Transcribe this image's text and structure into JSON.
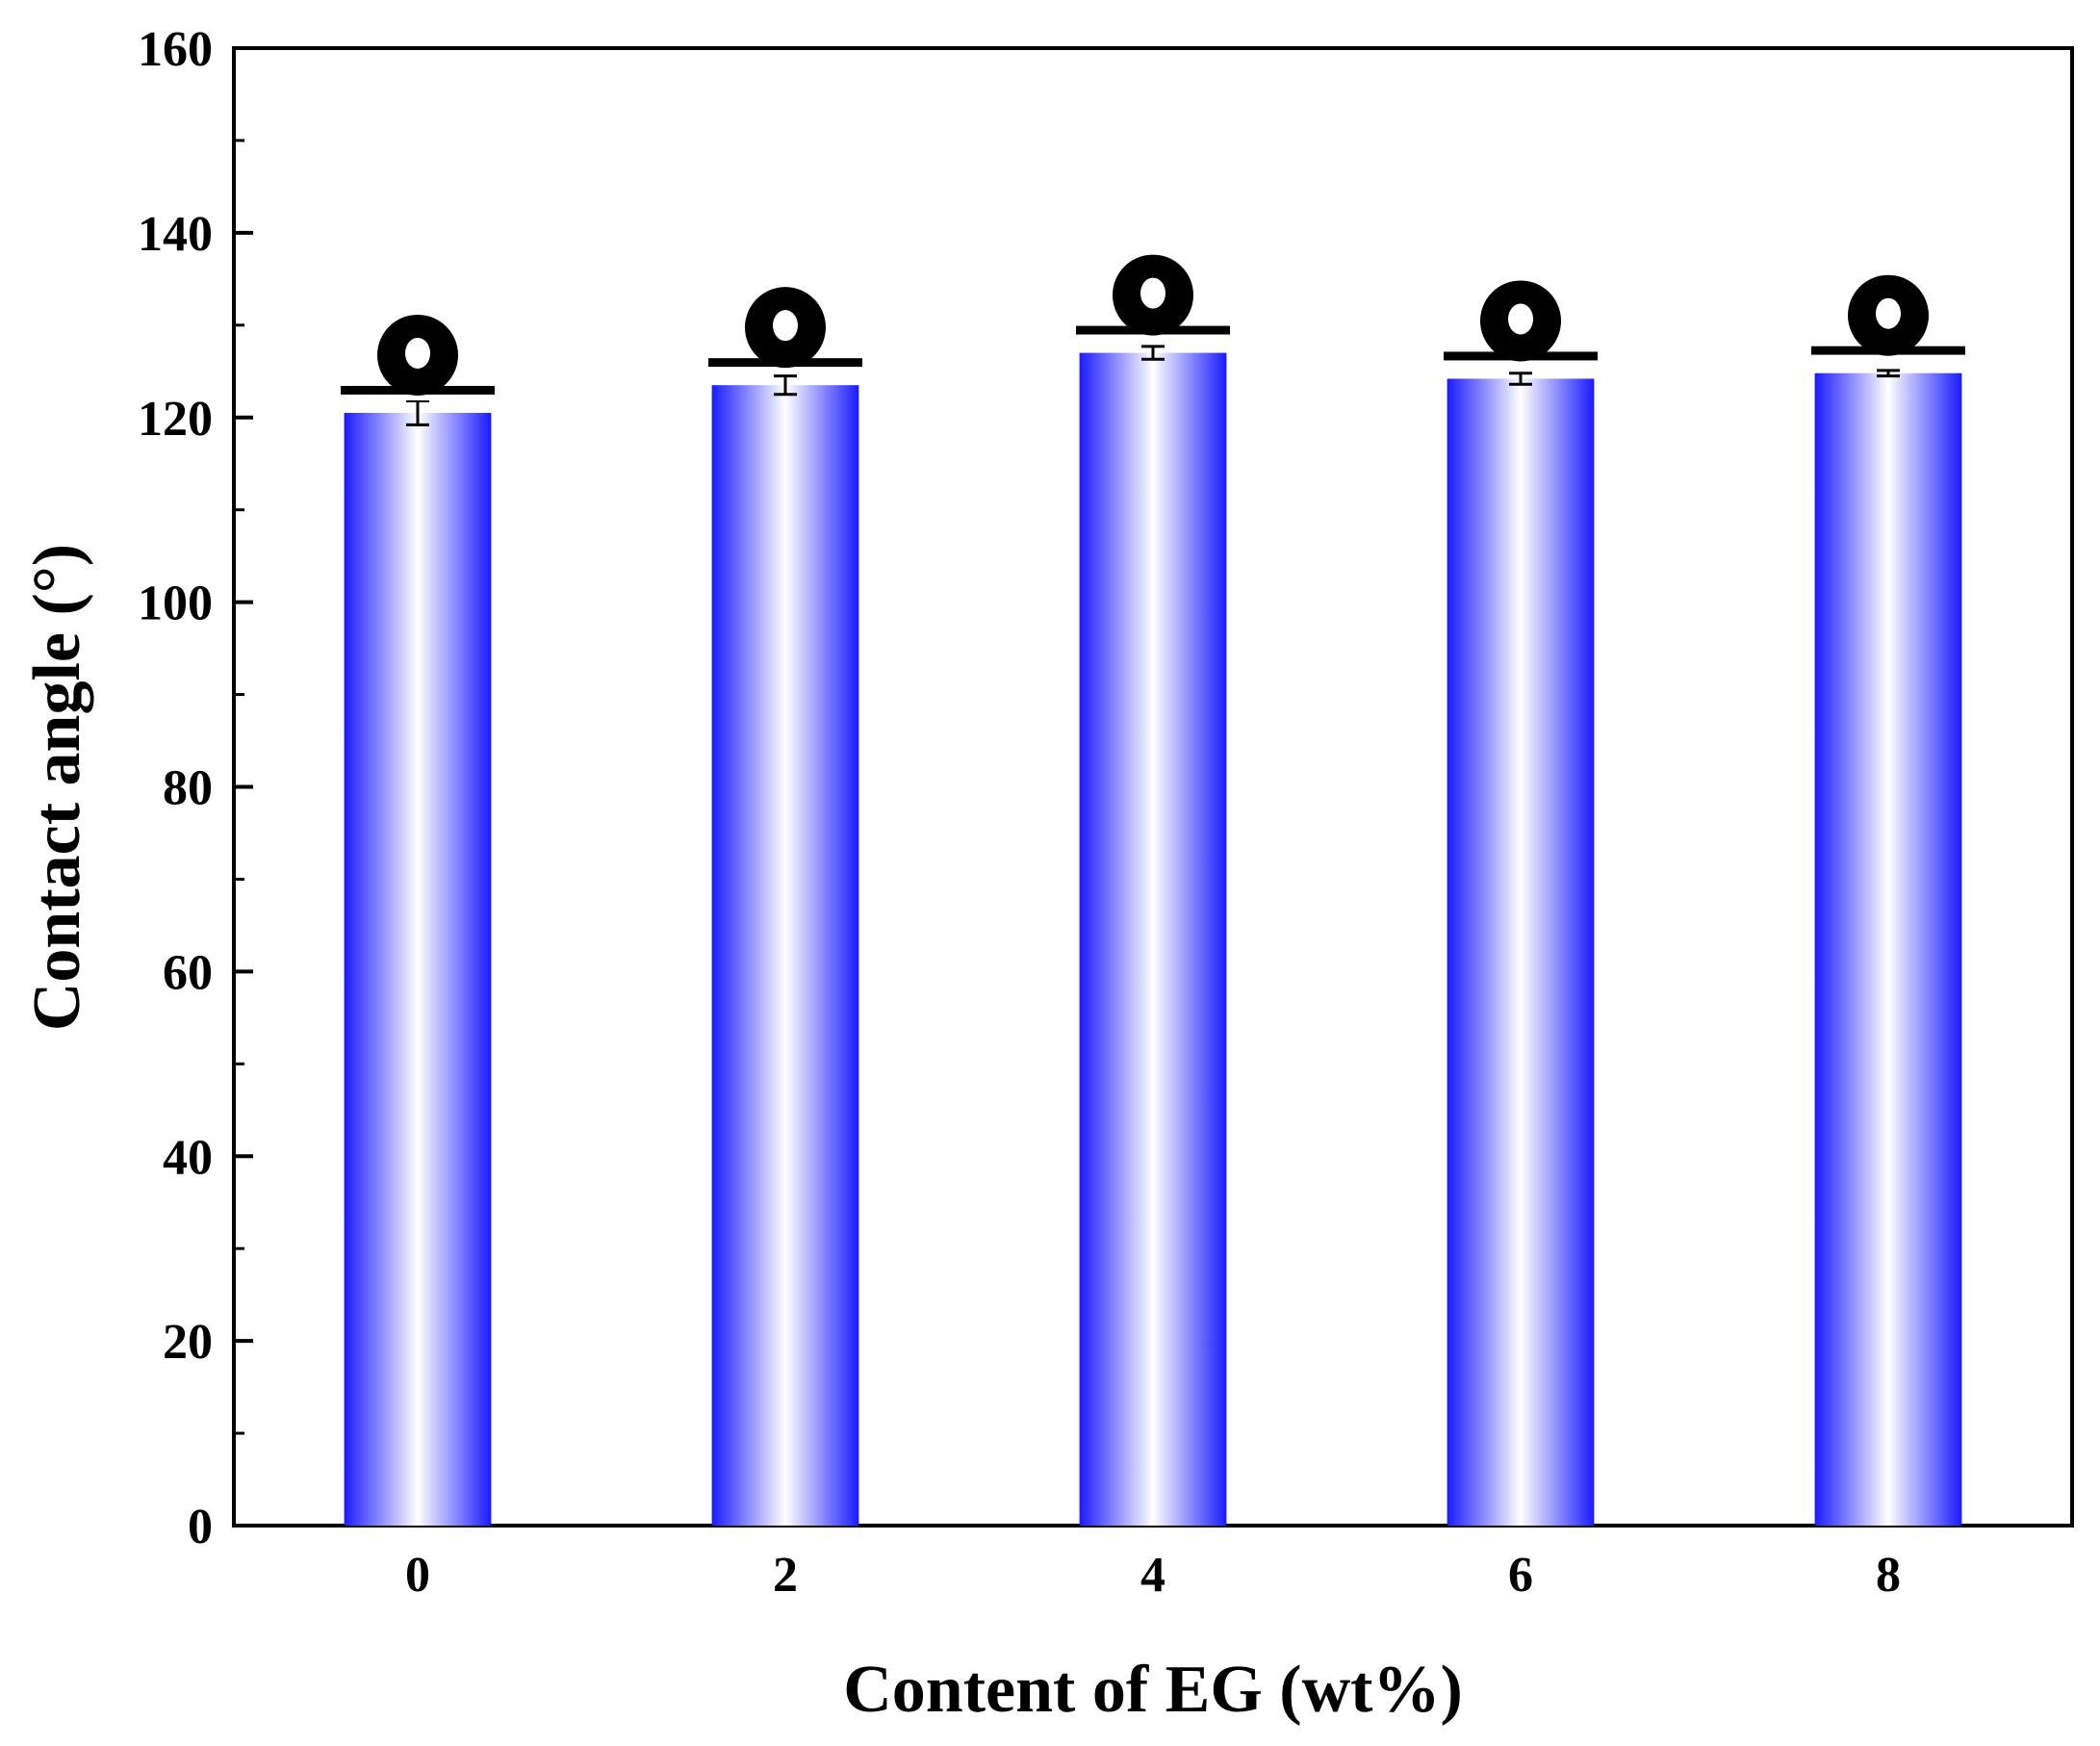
{
  "chart_data": {
    "type": "bar",
    "title": "",
    "xlabel": "Content of EG (wt%)",
    "ylabel": "Contact angle (°)",
    "categories": [
      "0",
      "2",
      "4",
      "6",
      "8"
    ],
    "values": [
      120.5,
      123.5,
      127.0,
      124.2,
      124.8
    ],
    "errors": [
      1.3,
      1.0,
      0.7,
      0.6,
      0.3
    ],
    "ylim": [
      0,
      160
    ],
    "yticks": [
      0,
      20,
      40,
      60,
      80,
      100,
      120,
      140,
      160
    ],
    "grid": false,
    "legend": "none",
    "bar_color": "#1a1aff",
    "inset_icon": "water-droplet-icon"
  }
}
